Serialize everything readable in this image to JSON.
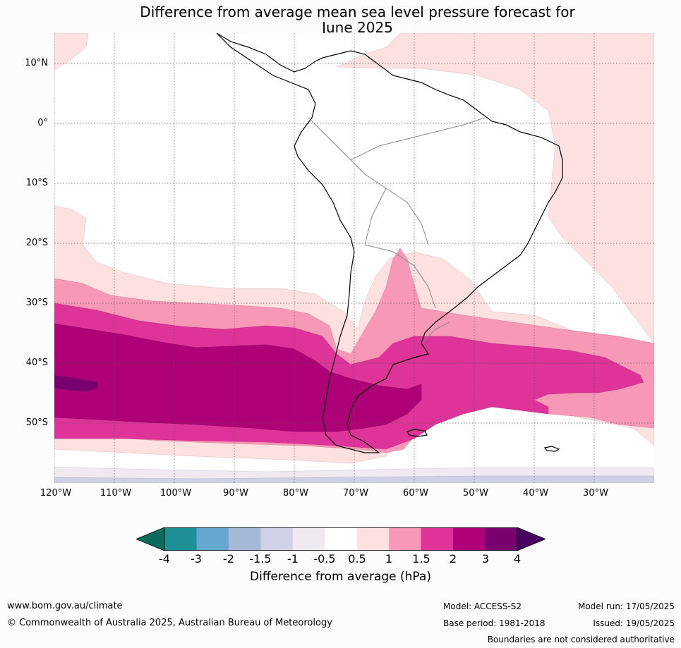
{
  "title_line1": "Difference from average mean sea level pressure forecast for",
  "title_line2": "June 2025",
  "lat_labels": [
    "10°N",
    "0°",
    "10°S",
    "20°S",
    "30°S",
    "40°S",
    "50°S"
  ],
  "lon_labels": [
    "120°W",
    "110°W",
    "100°W",
    "90°W",
    "80°W",
    "70°W",
    "60°W",
    "50°W",
    "40°W",
    "30°W"
  ],
  "colorbar": {
    "title": "Difference from average (hPa)",
    "ticks": [
      "-4",
      "-3",
      "-2",
      "-1.5",
      "-1",
      "-0.5",
      "0.5",
      "1",
      "1.5",
      "2",
      "3",
      "4"
    ],
    "colors": [
      "#1e8f95",
      "#65a8cf",
      "#a6b8d8",
      "#d0d0e6",
      "#eeeaf0",
      "#ffffff",
      "#fde0e0",
      "#f799b6",
      "#de3399",
      "#ae0077",
      "#78006f"
    ],
    "under_color": "#0b6b5c",
    "over_color": "#4a0060"
  },
  "colors": {
    "ocean": "#ffffff",
    "land": "#ffffff",
    "coast": "#000000",
    "border": "#888888"
  },
  "footer": {
    "website": "www.bom.gov.au/climate",
    "copyright": "© Commonwealth of Australia 2025, Australian Bureau of Meteorology",
    "model": "Model: ACCESS-S2",
    "base_period": "Base period: 1981-2018",
    "model_run": "Model run: 17/05/2025",
    "issued": "Issued: 19/05/2025",
    "disclaimer": "Boundaries are not considered authoritative"
  }
}
